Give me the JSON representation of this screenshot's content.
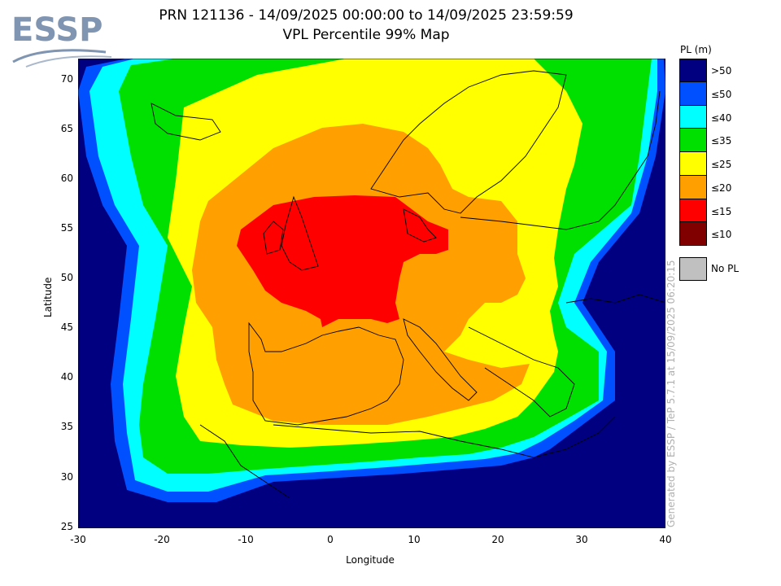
{
  "logo": {
    "text": "ESSP"
  },
  "title": {
    "line1": "PRN 121136 - 14/09/2025 00:00:00 to 14/09/2025 23:59:59",
    "line2": "VPL Percentile 99% Map"
  },
  "axes": {
    "xlabel": "Longitude",
    "ylabel": "Latitude",
    "xticks": [
      "-30",
      "-20",
      "-10",
      "0",
      "10",
      "20",
      "30",
      "40"
    ],
    "yticks": [
      "70",
      "65",
      "60",
      "55",
      "50",
      "45",
      "40",
      "35",
      "30",
      "25"
    ]
  },
  "legend": {
    "title": "PL (m)",
    "items": [
      {
        "label": ">50",
        "color": "#000080"
      },
      {
        "label": "≤50",
        "color": "#0050ff"
      },
      {
        "label": "≤40",
        "color": "#00ffff"
      },
      {
        "label": "≤35",
        "color": "#00e000"
      },
      {
        "label": "≤25",
        "color": "#ffff00"
      },
      {
        "label": "≤20",
        "color": "#ffa000"
      },
      {
        "label": "≤15",
        "color": "#ff0000"
      },
      {
        "label": "≤10",
        "color": "#800000"
      }
    ],
    "no_pl": {
      "label": "No PL",
      "color": "#c0c0c0"
    }
  },
  "credit": "Generated by ESSP / TeP 5.7.1 at 15/09/2025 06:20:15",
  "chart_data": {
    "type": "heatmap",
    "xlabel": "Longitude",
    "ylabel": "Latitude",
    "xlim": [
      -30,
      40
    ],
    "ylim": [
      25,
      72
    ],
    "grid": false,
    "legend_placement": "right",
    "zones": [
      {
        "class": ">50",
        "region": "outer ocean / far south and east"
      },
      {
        "class": "≤50",
        "region": "border band"
      },
      {
        "class": "≤40",
        "region": "border band"
      },
      {
        "class": "≤35",
        "region": "outer ring around Europe"
      },
      {
        "class": "≤25",
        "region": "ring around Europe"
      },
      {
        "class": "≤20",
        "region": "central Europe, Iberia, Mediterranean"
      },
      {
        "class": "≤15",
        "region": "UK, France, Benelux, Denmark"
      }
    ]
  }
}
